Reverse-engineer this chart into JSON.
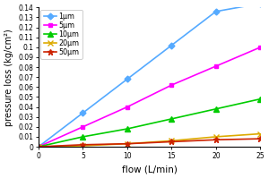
{
  "title": "",
  "xlabel": "flow (L/min)",
  "ylabel": "pressure loss (kg/cm²)",
  "xlim": [
    0,
    25
  ],
  "ylim": [
    0,
    0.14
  ],
  "yticks": [
    0,
    0.01,
    0.02,
    0.03,
    0.04,
    0.05,
    0.06,
    0.07,
    0.08,
    0.09,
    0.1,
    0.11,
    0.12,
    0.13,
    0.14
  ],
  "ytick_labels": [
    "0",
    "0.01",
    "0.02",
    "0.03",
    "0.04",
    "0.05",
    "0.06",
    "0.07",
    "0.08",
    "0.09",
    "0.1",
    "0.11",
    "0.12",
    "0.13",
    "0.14"
  ],
  "xticks": [
    0,
    5,
    10,
    15,
    20,
    25
  ],
  "series": [
    {
      "label": "1μm",
      "color": "#55aaff",
      "marker": "D",
      "markersize": 3.5,
      "x": [
        0,
        5,
        10,
        15,
        20,
        25
      ],
      "y": [
        0,
        0.034,
        0.068,
        0.102,
        0.136,
        0.144
      ]
    },
    {
      "label": "5μm",
      "color": "#ff00ff",
      "marker": "s",
      "markersize": 3.5,
      "x": [
        0,
        5,
        10,
        15,
        20,
        25
      ],
      "y": [
        0,
        0.02,
        0.04,
        0.062,
        0.081,
        0.1
      ]
    },
    {
      "label": "10μm",
      "color": "#00cc00",
      "marker": "^",
      "markersize": 4,
      "x": [
        0,
        5,
        10,
        15,
        20,
        25
      ],
      "y": [
        0,
        0.01,
        0.018,
        0.028,
        0.038,
        0.048
      ]
    },
    {
      "label": "20μm",
      "color": "#ddaa00",
      "marker": "x",
      "markersize": 4,
      "x": [
        0,
        5,
        10,
        15,
        20,
        25
      ],
      "y": [
        0,
        0.001,
        0.003,
        0.006,
        0.01,
        0.013
      ]
    },
    {
      "label": "50μm",
      "color": "#cc2200",
      "marker": "*",
      "markersize": 5,
      "x": [
        0,
        5,
        10,
        15,
        20,
        25
      ],
      "y": [
        0,
        0.002,
        0.003,
        0.005,
        0.007,
        0.008
      ]
    }
  ],
  "legend_loc": "upper left",
  "background_color": "#ffffff",
  "linewidth": 1.2
}
